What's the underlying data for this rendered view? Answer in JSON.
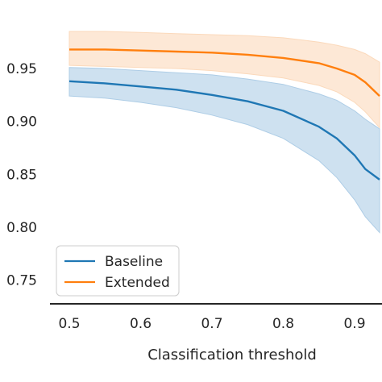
{
  "chart_data": {
    "type": "line",
    "title": "",
    "xlabel": "Classification threshold",
    "ylabel": "",
    "xlim": [
      0.48,
      0.935
    ],
    "ylim": [
      0.735,
      0.99
    ],
    "xticks": [
      0.5,
      0.6,
      0.7,
      0.8,
      0.9
    ],
    "xtick_labels": [
      "0.5",
      "0.6",
      "0.7",
      "0.8",
      "0.9"
    ],
    "yticks": [
      0.75,
      0.8,
      0.85,
      0.9,
      0.95
    ],
    "ytick_labels": [
      "0.75",
      "0.80",
      "0.85",
      "0.90",
      "0.95"
    ],
    "grid": false,
    "legend_position": "lower-left",
    "x": [
      0.5,
      0.55,
      0.6,
      0.65,
      0.7,
      0.75,
      0.8,
      0.85,
      0.875,
      0.9,
      0.915,
      0.935
    ],
    "series": [
      {
        "name": "Baseline",
        "color": "#1f77b4",
        "band_color": "#aecde6",
        "values": [
          0.938,
          0.936,
          0.933,
          0.93,
          0.925,
          0.919,
          0.91,
          0.895,
          0.884,
          0.868,
          0.855,
          0.845
        ],
        "lower": [
          0.924,
          0.922,
          0.918,
          0.913,
          0.906,
          0.897,
          0.884,
          0.863,
          0.847,
          0.826,
          0.81,
          0.795
        ],
        "upper": [
          0.951,
          0.95,
          0.948,
          0.946,
          0.944,
          0.94,
          0.935,
          0.926,
          0.92,
          0.91,
          0.902,
          0.893
        ]
      },
      {
        "name": "Extended",
        "color": "#ff7f0e",
        "band_color": "#fbd9bb",
        "values": [
          0.968,
          0.968,
          0.967,
          0.966,
          0.965,
          0.963,
          0.96,
          0.955,
          0.95,
          0.944,
          0.937,
          0.924
        ],
        "lower": [
          0.953,
          0.952,
          0.951,
          0.95,
          0.948,
          0.945,
          0.941,
          0.934,
          0.928,
          0.918,
          0.909,
          0.894
        ],
        "upper": [
          0.985,
          0.985,
          0.984,
          0.983,
          0.982,
          0.981,
          0.979,
          0.975,
          0.972,
          0.968,
          0.964,
          0.956
        ]
      }
    ]
  }
}
